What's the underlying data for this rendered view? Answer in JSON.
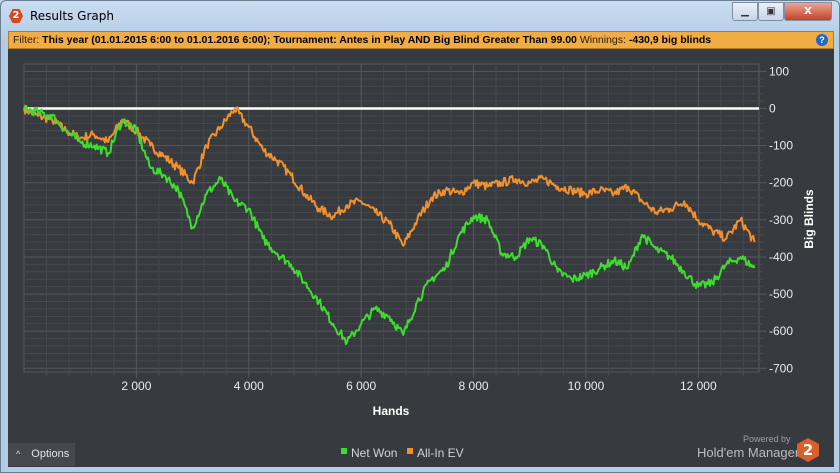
{
  "window": {
    "title": "Results Graph",
    "app_badge": "2",
    "minimize_icon": "minimize-icon",
    "maximize_icon": "restore-icon",
    "close_icon": "close-icon"
  },
  "filter": {
    "label": "Filter:",
    "value": "This year (01.01.2015 6:00 to 01.01.2016 6:00); Tournament: Antes in Play  AND Big Blind Greater Than 99.00",
    "winnings_label": "Winnings:",
    "winnings_value": "-430,9 big blinds",
    "help_icon": "help-icon"
  },
  "options": {
    "label": "Options",
    "icon": "chevron-up-icon"
  },
  "branding": {
    "powered": "Powered by",
    "name": "Hold'em Manager",
    "badge": "2"
  },
  "colors": {
    "net_won": "#3ddc2e",
    "all_in_ev": "#f0902e",
    "background": "#373a3e",
    "filter_bar": "#f2ac44"
  },
  "chart_data": {
    "type": "line",
    "xlabel": "Hands",
    "ylabel": "Big Blinds",
    "xlim": [
      0,
      13080
    ],
    "ylim": [
      -710,
      120
    ],
    "x_ticks": [
      "2 000",
      "4 000",
      "6 000",
      "8 000",
      "10 000",
      "12 000"
    ],
    "x_tick_values": [
      2000,
      4000,
      6000,
      8000,
      10000,
      12000
    ],
    "y_ticks": [
      "100",
      "0",
      "-100",
      "-200",
      "-300",
      "-400",
      "-500",
      "-600",
      "-700"
    ],
    "y_tick_values": [
      100,
      0,
      -100,
      -200,
      -300,
      -400,
      -500,
      -600,
      -700
    ],
    "grid": true,
    "legend": "bottom-center",
    "y_axis_side": "right",
    "x": [
      0,
      250,
      500,
      750,
      1000,
      1250,
      1500,
      1750,
      2000,
      2250,
      2500,
      2750,
      3000,
      3250,
      3500,
      3750,
      4000,
      4250,
      4500,
      4750,
      5000,
      5250,
      5500,
      5750,
      6000,
      6250,
      6500,
      6750,
      7000,
      7250,
      7500,
      7750,
      8000,
      8250,
      8500,
      8750,
      9000,
      9250,
      9500,
      9750,
      10000,
      10250,
      10500,
      10750,
      11000,
      11250,
      11500,
      11750,
      12000,
      12250,
      12500,
      12750,
      13000
    ],
    "series": [
      {
        "name": "Net Won",
        "values": [
          0,
          -10,
          -20,
          -60,
          -90,
          -100,
          -120,
          -30,
          -60,
          -160,
          -180,
          -220,
          -320,
          -230,
          -190,
          -250,
          -270,
          -350,
          -390,
          -420,
          -470,
          -520,
          -580,
          -630,
          -580,
          -540,
          -560,
          -610,
          -520,
          -460,
          -430,
          -340,
          -290,
          -300,
          -390,
          -400,
          -350,
          -370,
          -440,
          -460,
          -450,
          -430,
          -410,
          -430,
          -340,
          -380,
          -400,
          -440,
          -480,
          -470,
          -420,
          -400,
          -430
        ]
      },
      {
        "name": "All-In EV",
        "values": [
          0,
          -20,
          -30,
          -60,
          -80,
          -70,
          -90,
          -30,
          -60,
          -100,
          -130,
          -160,
          -200,
          -100,
          -50,
          0,
          -50,
          -110,
          -140,
          -180,
          -230,
          -270,
          -290,
          -260,
          -250,
          -280,
          -310,
          -370,
          -300,
          -240,
          -220,
          -230,
          -200,
          -210,
          -200,
          -190,
          -200,
          -190,
          -210,
          -220,
          -230,
          -220,
          -230,
          -210,
          -250,
          -280,
          -270,
          -250,
          -300,
          -330,
          -350,
          -300,
          -360
        ]
      }
    ]
  }
}
